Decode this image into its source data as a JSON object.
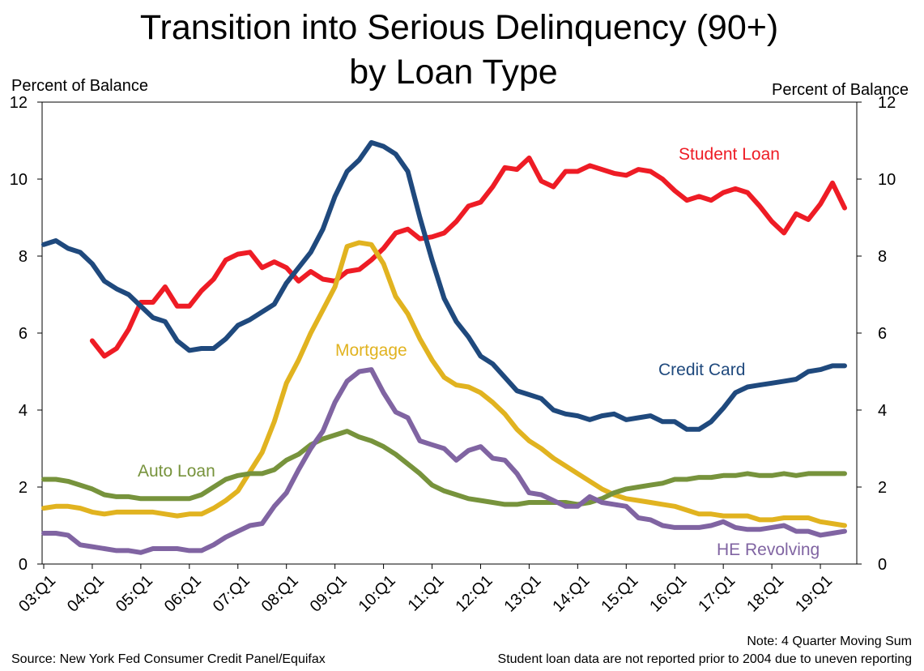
{
  "chart_data": {
    "type": "line",
    "title": [
      "Transition into Serious Delinquency (90+)",
      "by Loan Type"
    ],
    "ylabel_left": "Percent of Balance",
    "ylabel_right": "Percent of Balance",
    "ylim": [
      0,
      12
    ],
    "y_ticks": [
      0,
      2,
      4,
      6,
      8,
      10,
      12
    ],
    "x_tick_labels": [
      "03:Q1",
      "04:Q1",
      "05:Q1",
      "06:Q1",
      "07:Q1",
      "08:Q1",
      "09:Q1",
      "10:Q1",
      "11:Q1",
      "12:Q1",
      "13:Q1",
      "14:Q1",
      "15:Q1",
      "16:Q1",
      "17:Q1",
      "18:Q1",
      "19:Q1"
    ],
    "x_start_quarter": 0,
    "x_end_quarter": 67,
    "notes": {
      "note_line1": "Note: 4 Quarter Moving Sum",
      "note_line2": "Student loan data are not reported prior to 2004 due to uneven reporting",
      "source": "Source: New York Fed Consumer Credit Panel/Equifax"
    },
    "series": [
      {
        "name": "Student Loan",
        "label": "Student Loan",
        "color": "#ee1c25",
        "start_quarter": 4,
        "values": [
          5.8,
          5.4,
          5.6,
          6.1,
          6.8,
          6.8,
          7.2,
          6.7,
          6.7,
          7.1,
          7.4,
          7.9,
          8.05,
          8.1,
          7.7,
          7.85,
          7.7,
          7.35,
          7.6,
          7.4,
          7.35,
          7.6,
          7.65,
          7.9,
          8.2,
          8.6,
          8.7,
          8.45,
          8.5,
          8.6,
          8.9,
          9.3,
          9.4,
          9.8,
          10.3,
          10.25,
          10.55,
          9.95,
          9.8,
          10.2,
          10.2,
          10.35,
          10.25,
          10.15,
          10.1,
          10.25,
          10.2,
          10.0,
          9.7,
          9.45,
          9.55,
          9.45,
          9.65,
          9.75,
          9.65,
          9.3,
          8.9,
          8.6,
          9.1,
          8.95,
          9.35,
          9.9,
          9.25
        ]
      },
      {
        "name": "Credit Card",
        "label": "Credit Card",
        "color": "#1f497d",
        "start_quarter": 0,
        "values": [
          8.3,
          8.4,
          8.2,
          8.1,
          7.8,
          7.35,
          7.15,
          7.0,
          6.7,
          6.4,
          6.3,
          5.8,
          5.55,
          5.6,
          5.6,
          5.85,
          6.2,
          6.35,
          6.55,
          6.75,
          7.3,
          7.7,
          8.1,
          8.7,
          9.55,
          10.2,
          10.5,
          10.95,
          10.85,
          10.65,
          10.2,
          9.0,
          7.9,
          6.9,
          6.3,
          5.9,
          5.4,
          5.2,
          4.85,
          4.5,
          4.4,
          4.3,
          4.0,
          3.9,
          3.85,
          3.75,
          3.85,
          3.9,
          3.75,
          3.8,
          3.85,
          3.7,
          3.7,
          3.5,
          3.5,
          3.7,
          4.05,
          4.45,
          4.6,
          4.65,
          4.7,
          4.75,
          4.8,
          5.0,
          5.05,
          5.15,
          5.15
        ]
      },
      {
        "name": "Mortgage",
        "label": "Mortgage",
        "color": "#e1b320",
        "start_quarter": 0,
        "values": [
          1.45,
          1.5,
          1.5,
          1.45,
          1.35,
          1.3,
          1.35,
          1.35,
          1.35,
          1.35,
          1.3,
          1.25,
          1.3,
          1.3,
          1.45,
          1.65,
          1.9,
          2.4,
          2.9,
          3.7,
          4.7,
          5.3,
          6.0,
          6.6,
          7.2,
          8.25,
          8.35,
          8.3,
          7.8,
          6.95,
          6.5,
          5.85,
          5.3,
          4.85,
          4.65,
          4.6,
          4.45,
          4.2,
          3.9,
          3.5,
          3.2,
          3.0,
          2.75,
          2.55,
          2.35,
          2.15,
          1.95,
          1.8,
          1.7,
          1.65,
          1.6,
          1.55,
          1.5,
          1.4,
          1.3,
          1.3,
          1.25,
          1.25,
          1.25,
          1.15,
          1.15,
          1.2,
          1.2,
          1.2,
          1.1,
          1.05,
          1.0
        ]
      },
      {
        "name": "Auto Loan",
        "label": "Auto Loan",
        "color": "#77933c",
        "start_quarter": 0,
        "values": [
          2.2,
          2.2,
          2.15,
          2.05,
          1.95,
          1.8,
          1.75,
          1.75,
          1.7,
          1.7,
          1.7,
          1.7,
          1.7,
          1.8,
          2.0,
          2.2,
          2.3,
          2.35,
          2.35,
          2.45,
          2.7,
          2.85,
          3.1,
          3.25,
          3.35,
          3.45,
          3.3,
          3.2,
          3.05,
          2.85,
          2.6,
          2.35,
          2.05,
          1.9,
          1.8,
          1.7,
          1.65,
          1.6,
          1.55,
          1.55,
          1.6,
          1.6,
          1.6,
          1.6,
          1.55,
          1.6,
          1.7,
          1.85,
          1.95,
          2.0,
          2.05,
          2.1,
          2.2,
          2.2,
          2.25,
          2.25,
          2.3,
          2.3,
          2.35,
          2.3,
          2.3,
          2.35,
          2.3,
          2.35,
          2.35,
          2.35,
          2.35
        ]
      },
      {
        "name": "HE Revolving",
        "label": "HE Revolving",
        "color": "#8064a2",
        "start_quarter": 0,
        "values": [
          0.8,
          0.8,
          0.75,
          0.5,
          0.45,
          0.4,
          0.35,
          0.35,
          0.3,
          0.4,
          0.4,
          0.4,
          0.35,
          0.35,
          0.5,
          0.7,
          0.85,
          1.0,
          1.05,
          1.5,
          1.85,
          2.45,
          3.0,
          3.45,
          4.2,
          4.75,
          5.0,
          5.05,
          4.45,
          3.95,
          3.8,
          3.2,
          3.1,
          3.0,
          2.7,
          2.95,
          3.05,
          2.75,
          2.7,
          2.35,
          1.85,
          1.8,
          1.65,
          1.5,
          1.5,
          1.75,
          1.6,
          1.55,
          1.5,
          1.2,
          1.15,
          1.0,
          0.95,
          0.95,
          0.95,
          1.0,
          1.1,
          0.95,
          0.9,
          0.9,
          0.95,
          1.0,
          0.85,
          0.85,
          0.75,
          0.8,
          0.85
        ]
      }
    ]
  }
}
